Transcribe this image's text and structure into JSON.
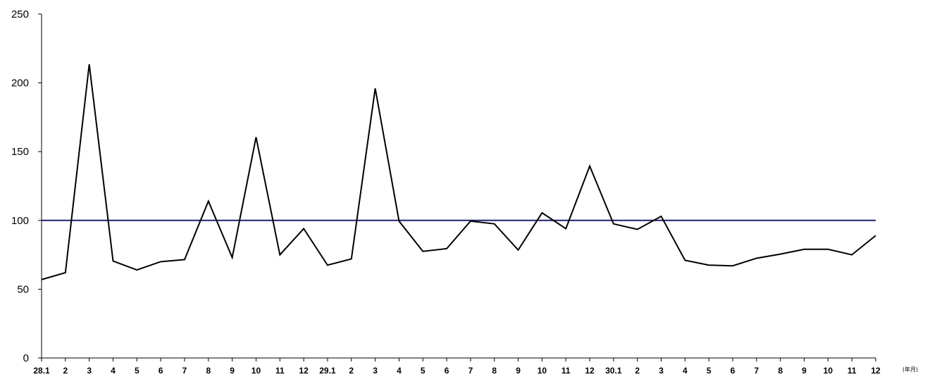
{
  "chart_data": {
    "type": "line",
    "title": "",
    "xlabel": "(年月)",
    "ylabel": "",
    "ylim": [
      0,
      250
    ],
    "yticks": [
      0,
      50,
      100,
      150,
      200,
      250
    ],
    "grid": false,
    "categories": [
      "28.1",
      "2",
      "3",
      "4",
      "5",
      "6",
      "7",
      "8",
      "9",
      "10",
      "11",
      "12",
      "29.1",
      "2",
      "3",
      "4",
      "5",
      "6",
      "7",
      "8",
      "9",
      "10",
      "11",
      "12",
      "30.1",
      "2",
      "3",
      "4",
      "5",
      "6",
      "7",
      "8",
      "9",
      "10",
      "11",
      "12"
    ],
    "series": [
      {
        "color": "#000000",
        "values": [
          57,
          62,
          213.5,
          70.5,
          64,
          70,
          71.5,
          114,
          73,
          160.5,
          75,
          94,
          67.5,
          72,
          196,
          99.5,
          77.5,
          79.5,
          99.5,
          97.5,
          78.5,
          105.5,
          94,
          139.5,
          97.5,
          93.5,
          103,
          71,
          67.5,
          67,
          72.5,
          75.5,
          79,
          79,
          75,
          89
        ]
      },
      {
        "color": "#1f1f6e",
        "values": [
          100,
          100,
          100,
          100,
          100,
          100,
          100,
          100,
          100,
          100,
          100,
          100,
          100,
          100,
          100,
          100,
          100,
          100,
          100,
          100,
          100,
          100,
          100,
          100,
          100,
          100,
          100,
          100,
          100,
          100,
          100,
          100,
          100,
          100,
          100,
          100
        ]
      }
    ]
  }
}
